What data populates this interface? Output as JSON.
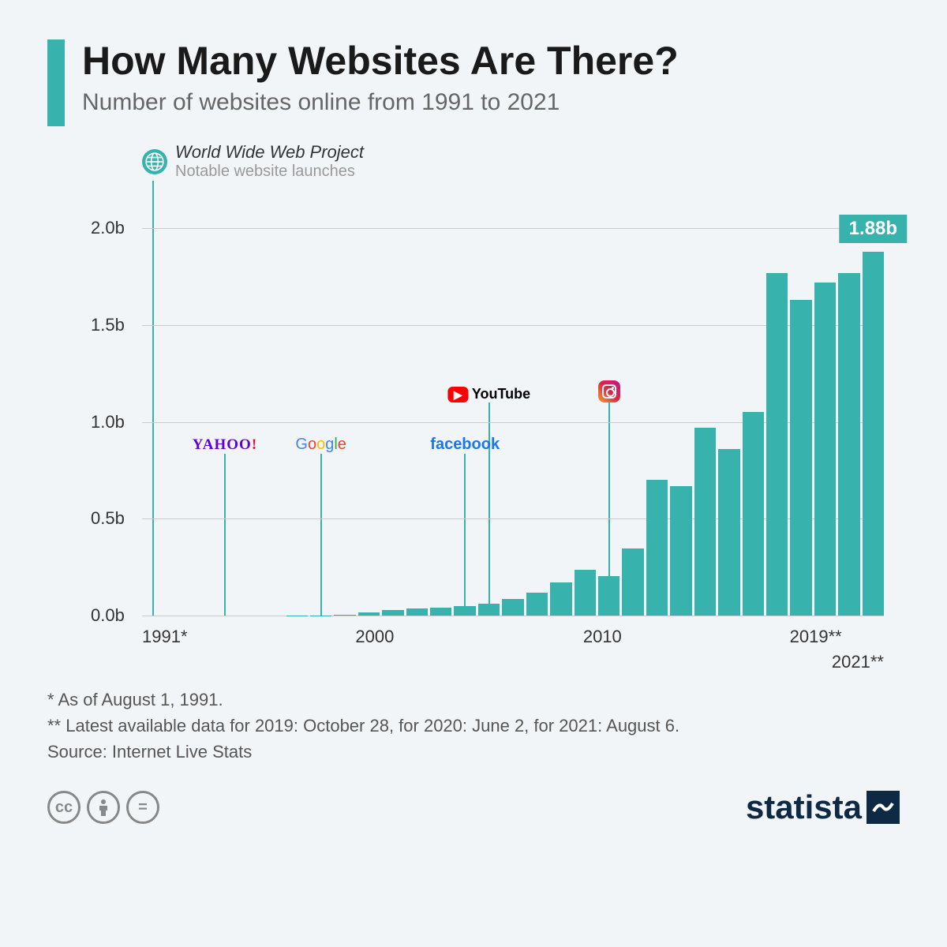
{
  "header": {
    "title": "How Many Websites Are There?",
    "subtitle": "Number of websites online from 1991 to 2021",
    "accent_color": "#38b2ac"
  },
  "legend": {
    "main": "World Wide Web Project",
    "sub": "Notable website launches"
  },
  "chart": {
    "type": "bar",
    "bar_color": "#38b2ac",
    "grid_color": "#cccccc",
    "background_color": "#f2f5f7",
    "ylim": [
      0,
      2.2
    ],
    "yticks": [
      0.0,
      0.5,
      1.0,
      1.5,
      2.0
    ],
    "ytick_labels": [
      "0.0b",
      "0.5b",
      "1.0b",
      "1.5b",
      "2.0b"
    ],
    "years": [
      1991,
      1992,
      1993,
      1994,
      1995,
      1996,
      1997,
      1998,
      1999,
      2000,
      2001,
      2002,
      2003,
      2004,
      2005,
      2006,
      2007,
      2008,
      2009,
      2010,
      2011,
      2012,
      2013,
      2014,
      2015,
      2016,
      2017,
      2018,
      2019,
      2020,
      2021
    ],
    "values": [
      0.0,
      0.0,
      0.0,
      0.0,
      0.0,
      0.0,
      0.001,
      0.002,
      0.003,
      0.018,
      0.03,
      0.038,
      0.04,
      0.05,
      0.063,
      0.085,
      0.12,
      0.17,
      0.235,
      0.205,
      0.345,
      0.7,
      0.67,
      0.97,
      0.86,
      1.05,
      1.77,
      1.63,
      1.72,
      1.77,
      1.88
    ],
    "xlabels": {
      "0": "1991*",
      "9": "2000",
      "19": "2010",
      "28": "2019**"
    },
    "extra_xlabel": "2021**",
    "value_badge": {
      "index": 30,
      "label": "1.88b"
    },
    "annotations": [
      {
        "index": 0,
        "name": "www",
        "height_pct": 102
      },
      {
        "index": 3,
        "name": "yahoo",
        "height_pct": 38,
        "label_top_pct": 60,
        "html": "<span class='yahoo'>YAHOO<span class='ex'>!</span></span>"
      },
      {
        "index": 7,
        "name": "google",
        "height_pct": 38,
        "label_top_pct": 60,
        "html": "<span class='google'><span class='b'>G</span><span class='r'>o</span><span class='y'>o</span><span class='b'>g</span><span class='g'>l</span><span class='r'>e</span></span>"
      },
      {
        "index": 13,
        "name": "facebook",
        "height_pct": 38,
        "label_top_pct": 60,
        "html": "<span class='facebook'>facebook</span>"
      },
      {
        "index": 14,
        "name": "youtube",
        "height_pct": 50,
        "label_top_pct": 48,
        "html": "<span class='youtube'><span class='play'>▶</span>YouTube</span>"
      },
      {
        "index": 19,
        "name": "instagram",
        "height_pct": 50,
        "label_top_pct": 45,
        "html": "<div class='ig-grad'><div class='ig-inner'></div></div>"
      }
    ]
  },
  "footnotes": [
    "*   As of August 1, 1991.",
    "** Latest available data for 2019: October 28, for 2020: June 2, for 2021: August 6.",
    "Source: Internet Live Stats"
  ],
  "footer": {
    "brand": "statista"
  }
}
